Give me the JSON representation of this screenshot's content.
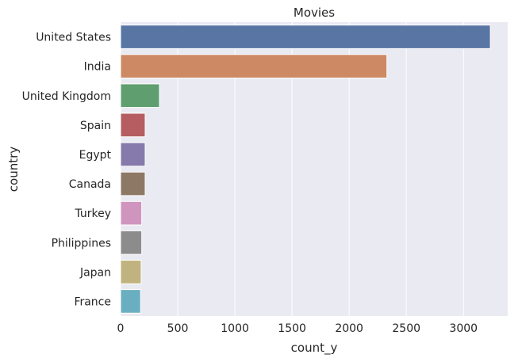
{
  "chart_data": {
    "type": "bar",
    "orientation": "horizontal",
    "title": "Movies",
    "xlabel": "count_y",
    "ylabel": "country",
    "categories": [
      "United States",
      "India",
      "United Kingdom",
      "Spain",
      "Egypt",
      "Canada",
      "Turkey",
      "Philippines",
      "Japan",
      "France"
    ],
    "values": [
      3235,
      2330,
      340,
      215,
      215,
      215,
      185,
      185,
      180,
      175
    ],
    "colors": [
      "#5875a4",
      "#cc8963",
      "#5f9e6e",
      "#b55d60",
      "#857aab",
      "#8d7866",
      "#d095bf",
      "#8c8c8c",
      "#c1b37f",
      "#6aaec1"
    ],
    "xlim": [
      0,
      3387
    ],
    "xticks": [
      0,
      500,
      1000,
      1500,
      2000,
      2500,
      3000
    ],
    "grid": true,
    "background": "#eaeaf2"
  }
}
